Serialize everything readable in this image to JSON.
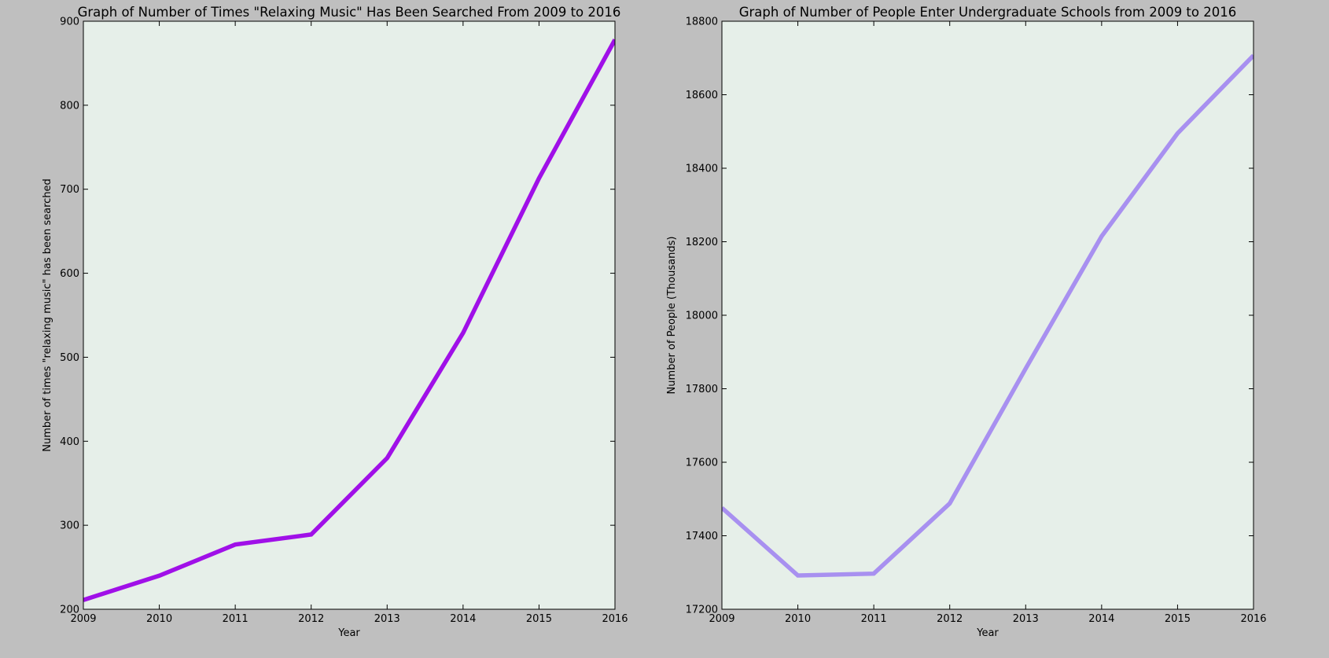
{
  "figure": {
    "background": "#bfbfbf",
    "axes_facecolor": "#e6efe9"
  },
  "chart_data": [
    {
      "type": "line",
      "title": "Graph of Number of Times \"Relaxing Music\" Has Been Searched From 2009 to 2016",
      "xlabel": "Year",
      "ylabel": "Number of times \"relaxing music\" has been searched",
      "x": [
        2009,
        2010,
        2011,
        2012,
        2013,
        2014,
        2015,
        2016
      ],
      "xlim": [
        2009,
        2016
      ],
      "ylim": [
        200,
        900
      ],
      "xticks": [
        "2009",
        "2010",
        "2011",
        "2012",
        "2013",
        "2014",
        "2015",
        "2016"
      ],
      "yticks": [
        "200",
        "300",
        "400",
        "500",
        "600",
        "700",
        "800",
        "900"
      ],
      "grid": false,
      "series": [
        {
          "values": [
            211,
            240,
            277,
            289,
            380,
            529,
            713,
            878
          ],
          "color": "#a010e8"
        }
      ]
    },
    {
      "type": "line",
      "title": "Graph of Number of People Enter Undergraduate Schools from 2009 to 2016",
      "xlabel": "Year",
      "ylabel": "Number of People (Thousands)",
      "x": [
        2009,
        2010,
        2011,
        2012,
        2013,
        2014,
        2015,
        2016
      ],
      "xlim": [
        2009,
        2016
      ],
      "ylim": [
        17200,
        18800
      ],
      "xticks": [
        "2009",
        "2010",
        "2011",
        "2012",
        "2013",
        "2014",
        "2015",
        "2016"
      ],
      "yticks": [
        "17200",
        "17400",
        "17600",
        "17800",
        "18000",
        "18200",
        "18400",
        "18600",
        "18800"
      ],
      "grid": false,
      "series": [
        {
          "values": [
            17476,
            17292,
            17297,
            17488,
            17855,
            18215,
            18495,
            18707
          ],
          "color": "#a890f0"
        }
      ]
    }
  ]
}
